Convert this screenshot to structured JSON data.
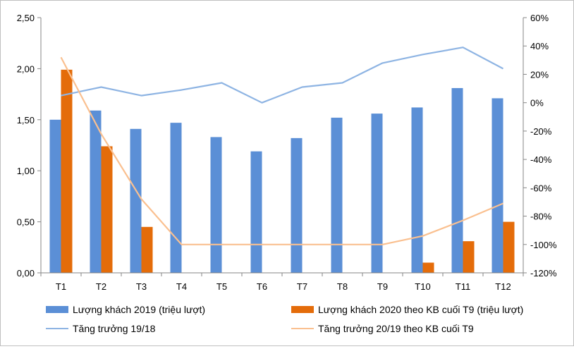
{
  "chart_data": {
    "type": "bar",
    "categories": [
      "T1",
      "T2",
      "T3",
      "T4",
      "T5",
      "T6",
      "T7",
      "T8",
      "T9",
      "T10",
      "T11",
      "T12"
    ],
    "series": [
      {
        "name": "Lượng khách 2019 (triệu lượt)",
        "kind": "bar",
        "axis": "left",
        "color": "#5B8FD6",
        "values": [
          1.5,
          1.59,
          1.41,
          1.47,
          1.33,
          1.19,
          1.32,
          1.52,
          1.56,
          1.62,
          1.81,
          1.71
        ]
      },
      {
        "name": "Lượng khách 2020 theo KB cuối T9 (triệu lượt)",
        "kind": "bar",
        "axis": "left",
        "color": "#E46C0A",
        "values": [
          1.99,
          1.24,
          0.45,
          0,
          0,
          0,
          0,
          0,
          0,
          0.1,
          0.31,
          0.5
        ]
      },
      {
        "name": "Tăng trưởng 19/18",
        "kind": "line",
        "axis": "right",
        "color": "#8EB4E3",
        "values": [
          5,
          11,
          5,
          9,
          14,
          0,
          11,
          14,
          28,
          34,
          39,
          24
        ]
      },
      {
        "name": "Tăng trưởng 20/19 theo KB cuối T9",
        "kind": "line",
        "axis": "right",
        "color": "#FAC090",
        "values": [
          32,
          -22,
          -68,
          -100,
          -100,
          -100,
          -100,
          -100,
          -100,
          -94,
          -83,
          -71
        ]
      }
    ],
    "y_left": {
      "ylim": [
        0,
        2.5
      ],
      "ticks": [
        "0,00",
        "0,50",
        "1,00",
        "1,50",
        "2,00",
        "2,50"
      ]
    },
    "y_right": {
      "ylim": [
        -120,
        60
      ],
      "ticks": [
        "-120%",
        "-100%",
        "-80%",
        "-60%",
        "-40%",
        "-20%",
        "0%",
        "20%",
        "40%",
        "60%"
      ]
    },
    "legend_position": "bottom",
    "grid": false
  }
}
